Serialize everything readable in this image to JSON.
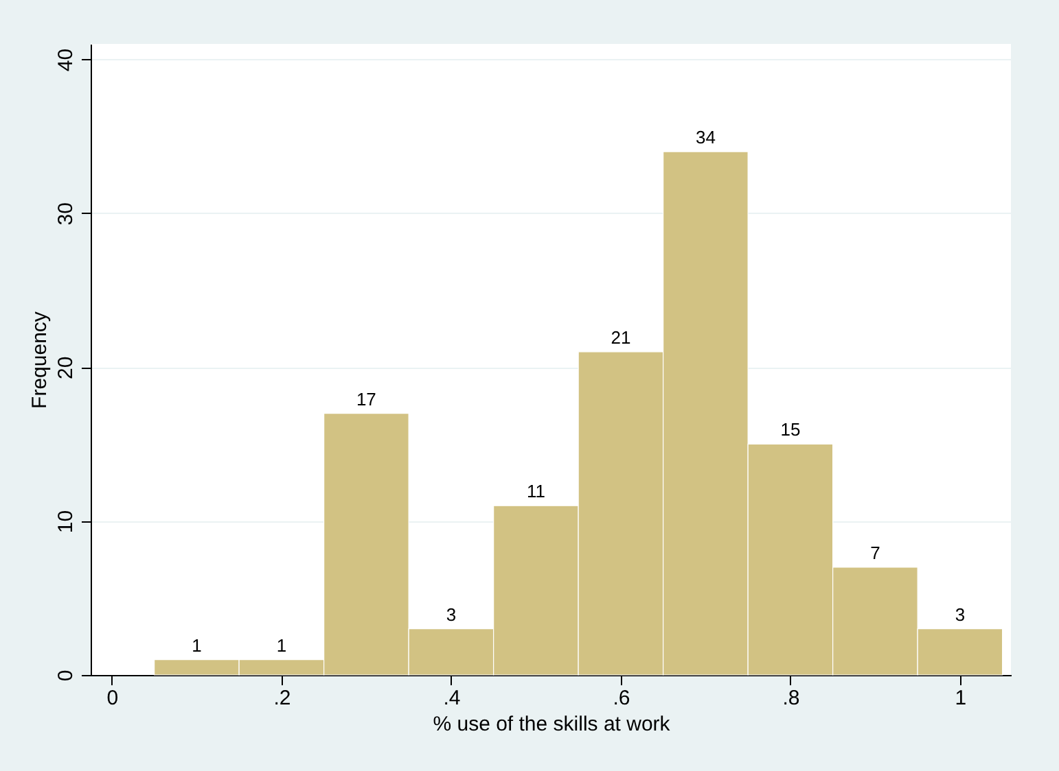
{
  "chart_data": {
    "type": "histogram",
    "xlabel": "% use of the skills at work",
    "ylabel": "Frequency",
    "bins": [
      0.05,
      0.15,
      0.25,
      0.35,
      0.45,
      0.55,
      0.65,
      0.75,
      0.85,
      0.95,
      1.05
    ],
    "values": [
      1,
      1,
      17,
      3,
      11,
      21,
      34,
      15,
      7,
      3
    ],
    "color": "#d2c283",
    "xlim": [
      -0.025,
      1.06
    ],
    "xticks": [
      0,
      {
        "value": 0.2,
        "label": ".2"
      },
      {
        "value": 0.4,
        "label": ".4"
      },
      {
        "value": 0.6,
        "label": ".6"
      },
      {
        "value": 0.8,
        "label": ".8"
      },
      1
    ],
    "ylim": [
      0,
      41
    ],
    "yticks": [
      0,
      10,
      20,
      30,
      40
    ],
    "grid": "y",
    "data_labels": true
  }
}
